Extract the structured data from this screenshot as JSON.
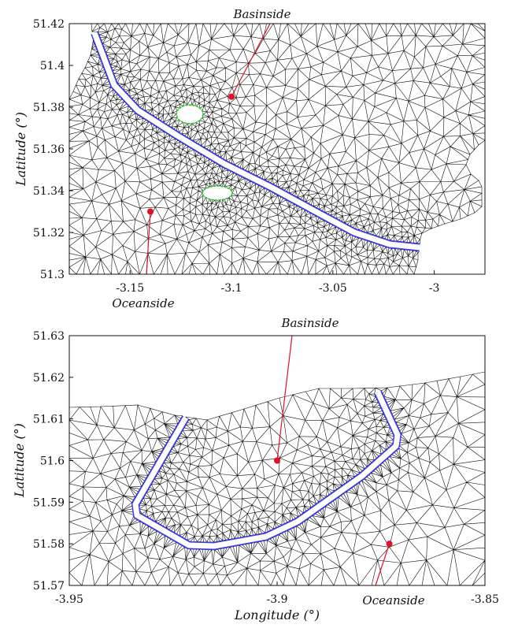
{
  "chart_data": [
    {
      "type": "mesh-map",
      "xlim": [
        -3.18,
        -2.975
      ],
      "ylim": [
        51.3,
        51.42
      ],
      "xticks": [
        -3.15,
        -3.1,
        -3.05,
        -3
      ],
      "xtick_labels": [
        "-3.15",
        "-3.1",
        "-3.05",
        "-3"
      ],
      "yticks": [
        51.3,
        51.32,
        51.34,
        51.36,
        51.38,
        51.4,
        51.42
      ],
      "ytick_labels": [
        "51.3",
        "51.32",
        "51.34",
        "51.36",
        "51.38",
        "51.4",
        "51.42"
      ],
      "ylabel": "Latitude (°)",
      "xlabel": "",
      "grid": false,
      "annotations": [
        {
          "text": "Basinside",
          "point": [
            -3.1,
            51.385
          ]
        },
        {
          "text": "Oceanside",
          "point": [
            -3.14,
            51.33
          ]
        }
      ],
      "barrier_colors": {
        "barrier": "#3b3bff",
        "island_outline": "#22cc22",
        "mesh": "#111111",
        "point": "#e0102a"
      }
    },
    {
      "type": "mesh-map",
      "xlim": [
        -3.95,
        -3.85
      ],
      "ylim": [
        51.57,
        51.63
      ],
      "xticks": [
        -3.95,
        -3.9,
        -3.85
      ],
      "xtick_labels": [
        "-3.95",
        "-3.9",
        "-3.85"
      ],
      "yticks": [
        51.57,
        51.58,
        51.59,
        51.6,
        51.61,
        51.62,
        51.63
      ],
      "ytick_labels": [
        "51.57",
        "51.58",
        "51.59",
        "51.6",
        "51.61",
        "51.62",
        "51.63"
      ],
      "ylabel": "Latitude (°)",
      "xlabel": "Longitude (°)",
      "grid": false,
      "annotations": [
        {
          "text": "Basinside",
          "point": [
            -3.9,
            51.6
          ]
        },
        {
          "text": "Oceanside",
          "point": [
            -3.873,
            51.58
          ]
        }
      ],
      "barrier_colors": {
        "barrier": "#3b3bff",
        "mesh": "#111111",
        "point": "#e0102a"
      }
    }
  ]
}
